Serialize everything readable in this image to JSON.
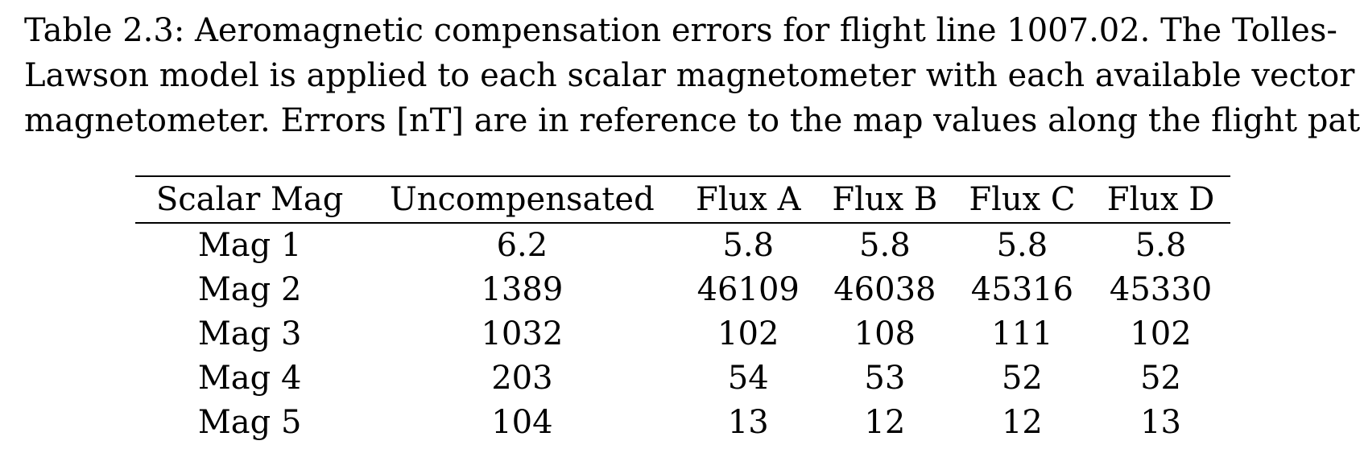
{
  "caption": {
    "lines": [
      "Table 2.3: Aeromagnetic compensation errors for flight line 1007.02. The Tolles-",
      "Lawson model is applied to each scalar magnetometer with each available vector",
      "magnetometer. Errors [nT] are in reference to the map values along the flight path."
    ]
  },
  "table": {
    "headers": [
      "Scalar Mag",
      "Uncompensated",
      "Flux A",
      "Flux B",
      "Flux C",
      "Flux D"
    ],
    "rows": [
      [
        "Mag 1",
        "6.2",
        "5.8",
        "5.8",
        "5.8",
        "5.8"
      ],
      [
        "Mag 2",
        "1389",
        "46109",
        "46038",
        "45316",
        "45330"
      ],
      [
        "Mag 3",
        "1032",
        "102",
        "108",
        "111",
        "102"
      ],
      [
        "Mag 4",
        "203",
        "54",
        "53",
        "52",
        "52"
      ],
      [
        "Mag 5",
        "104",
        "13",
        "12",
        "12",
        "13"
      ]
    ]
  }
}
